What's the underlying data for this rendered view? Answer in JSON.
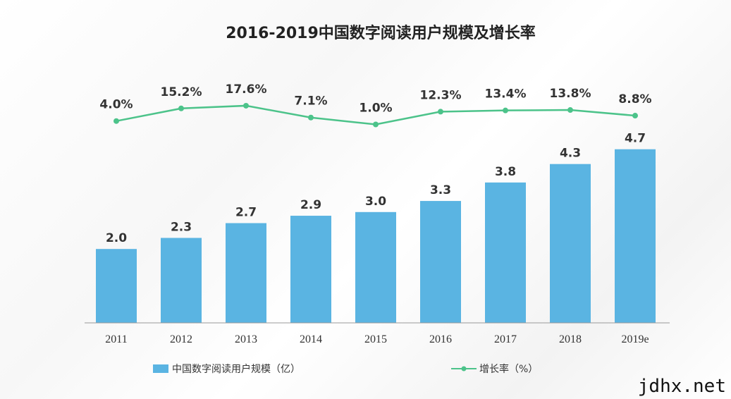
{
  "chart_data": {
    "type": "bar",
    "title": "2016-2019中国数字阅读用户规模及增长率",
    "categories": [
      "2011",
      "2012",
      "2013",
      "2014",
      "2015",
      "2016",
      "2017",
      "2018",
      "2019e"
    ],
    "series": [
      {
        "name": "中国数字阅读用户规模（亿）",
        "type": "bar",
        "values": [
          2.0,
          2.3,
          2.7,
          2.9,
          3.0,
          3.3,
          3.8,
          4.3,
          4.7
        ],
        "labels": [
          "2.0",
          "2.3",
          "2.7",
          "2.9",
          "3.0",
          "3.3",
          "3.8",
          "4.3",
          "4.7"
        ],
        "color": "#5ab4e2"
      },
      {
        "name": "增长率（%）",
        "type": "line",
        "values": [
          4.0,
          15.2,
          17.6,
          7.1,
          1.0,
          12.3,
          13.4,
          13.8,
          8.8
        ],
        "labels": [
          "4.0%",
          "15.2%",
          "17.6%",
          "7.1%",
          "1.0%",
          "12.3%",
          "13.4%",
          "13.8%",
          "8.8%"
        ],
        "color": "#4cc38a"
      }
    ],
    "legend_position": "bottom",
    "grid": false
  },
  "watermark": "jdhx.net"
}
